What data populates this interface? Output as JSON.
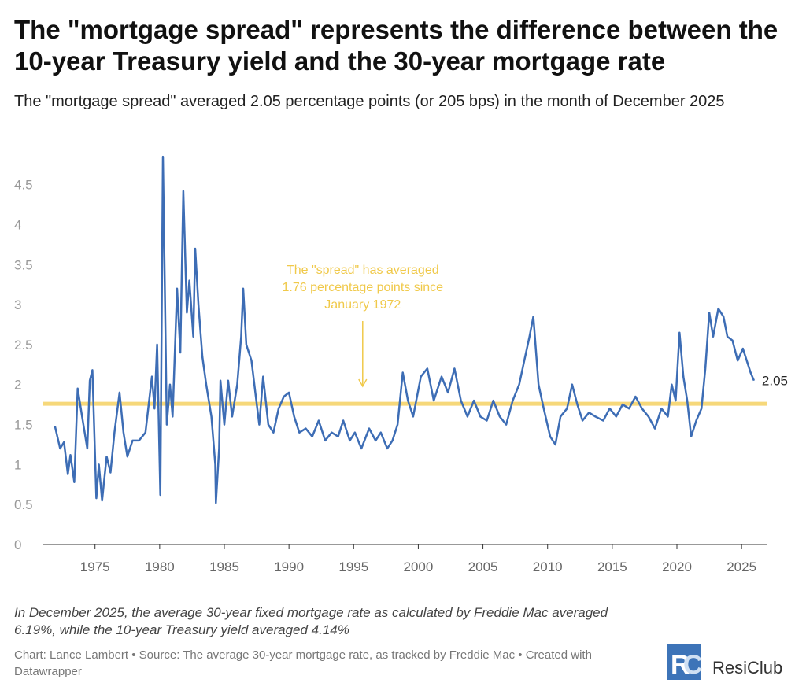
{
  "chart_data": {
    "type": "line",
    "title": "The \"mortgage spread\" represents the difference between the 10-year Treasury yield and the 30-year mortgage rate",
    "subtitle": "The \"mortgage spread\" averaged 2.05 percentage points (or 205 bps) in the month of December 2025",
    "xlim": [
      1971,
      2027
    ],
    "xticks": [
      1975,
      1980,
      1985,
      1990,
      1995,
      2000,
      2005,
      2010,
      2015,
      2020,
      2025
    ],
    "ylim": [
      0,
      4.9
    ],
    "yticks": [
      0,
      0.5,
      1,
      1.5,
      2,
      2.5,
      3,
      3.5,
      4,
      4.5
    ],
    "grid": false,
    "x": [
      1971.9,
      1972.3,
      1972.6,
      1972.9,
      1973.1,
      1973.4,
      1973.66,
      1974.0,
      1974.4,
      1974.6,
      1974.8,
      1975.1,
      1975.3,
      1975.55,
      1975.9,
      1976.2,
      1976.5,
      1976.9,
      1977.2,
      1977.5,
      1977.9,
      1978.4,
      1978.9,
      1979.4,
      1979.6,
      1979.8,
      1980.05,
      1980.25,
      1980.55,
      1980.8,
      1981.0,
      1981.35,
      1981.6,
      1981.83,
      1982.1,
      1982.3,
      1982.6,
      1982.75,
      1983.0,
      1983.3,
      1983.6,
      1984.0,
      1984.3,
      1984.35,
      1984.6,
      1984.7,
      1985.0,
      1985.3,
      1985.6,
      1986.0,
      1986.3,
      1986.46,
      1986.7,
      1987.1,
      1987.4,
      1987.7,
      1988.0,
      1988.4,
      1988.8,
      1989.2,
      1989.6,
      1990.0,
      1990.4,
      1990.8,
      1991.3,
      1991.8,
      1992.3,
      1992.8,
      1993.3,
      1993.8,
      1994.2,
      1994.7,
      1995.1,
      1995.6,
      1996.2,
      1996.7,
      1997.1,
      1997.6,
      1998.0,
      1998.4,
      1998.8,
      1999.2,
      1999.6,
      2000.2,
      2000.7,
      2001.2,
      2001.8,
      2002.3,
      2002.8,
      2003.3,
      2003.8,
      2004.3,
      2004.8,
      2005.3,
      2005.8,
      2006.3,
      2006.8,
      2007.3,
      2007.8,
      2008.2,
      2008.6,
      2008.9,
      2009.3,
      2009.7,
      2010.2,
      2010.6,
      2011.0,
      2011.5,
      2011.9,
      2012.3,
      2012.7,
      2013.2,
      2013.7,
      2014.3,
      2014.8,
      2015.3,
      2015.8,
      2016.3,
      2016.8,
      2017.3,
      2017.8,
      2018.3,
      2018.8,
      2019.3,
      2019.6,
      2019.9,
      2020.2,
      2020.5,
      2020.8,
      2021.1,
      2021.5,
      2021.9,
      2022.2,
      2022.5,
      2022.8,
      2023.2,
      2023.6,
      2023.9,
      2024.3,
      2024.7,
      2025.1,
      2025.4,
      2025.7,
      2025.96
    ],
    "series": [
      {
        "name": "Mortgage spread",
        "color": "#3d6db5",
        "values": [
          1.48,
          1.2,
          1.28,
          0.88,
          1.12,
          0.78,
          1.95,
          1.6,
          1.2,
          2.05,
          2.18,
          0.58,
          1.0,
          0.55,
          1.1,
          0.9,
          1.4,
          1.9,
          1.4,
          1.1,
          1.3,
          1.3,
          1.4,
          2.1,
          1.7,
          2.5,
          0.62,
          4.85,
          1.5,
          2.0,
          1.6,
          3.2,
          2.4,
          4.42,
          2.9,
          3.3,
          2.6,
          3.7,
          3.0,
          2.35,
          2.0,
          1.6,
          1.0,
          0.52,
          1.2,
          2.05,
          1.5,
          2.05,
          1.6,
          2.0,
          2.6,
          3.2,
          2.5,
          2.3,
          1.9,
          1.5,
          2.1,
          1.5,
          1.4,
          1.7,
          1.85,
          1.9,
          1.6,
          1.4,
          1.45,
          1.35,
          1.55,
          1.3,
          1.4,
          1.35,
          1.55,
          1.3,
          1.4,
          1.2,
          1.45,
          1.3,
          1.4,
          1.2,
          1.3,
          1.5,
          2.15,
          1.8,
          1.6,
          2.1,
          2.2,
          1.8,
          2.1,
          1.9,
          2.2,
          1.8,
          1.6,
          1.8,
          1.6,
          1.55,
          1.8,
          1.6,
          1.5,
          1.8,
          2.0,
          2.3,
          2.6,
          2.85,
          2.0,
          1.7,
          1.35,
          1.25,
          1.6,
          1.7,
          2.0,
          1.75,
          1.55,
          1.65,
          1.6,
          1.55,
          1.7,
          1.6,
          1.75,
          1.7,
          1.85,
          1.7,
          1.6,
          1.45,
          1.7,
          1.6,
          2.0,
          1.8,
          2.65,
          2.1,
          1.8,
          1.35,
          1.55,
          1.7,
          2.2,
          2.9,
          2.6,
          2.95,
          2.85,
          2.6,
          2.55,
          2.3,
          2.45,
          2.3,
          2.15,
          2.05
        ]
      }
    ],
    "reference_line": {
      "value": 1.76,
      "color": "#f6d87a"
    },
    "annotation": {
      "lines": [
        "The \"spread\" has averaged",
        "1.76 percentage points since",
        "January 1972"
      ],
      "color": "#f0c94a"
    },
    "note": "In December 2025, the average 30-year fixed mortgage rate as calculated by Freddie Mac averaged 6.19%, while the 10-year Treasury yield averaged 4.14%",
    "source": "Chart: Lance Lambert • Source: The average 30-year mortgage rate, as tracked by Freddie Mac • Created with Datawrapper",
    "logo": "ResiClub"
  }
}
